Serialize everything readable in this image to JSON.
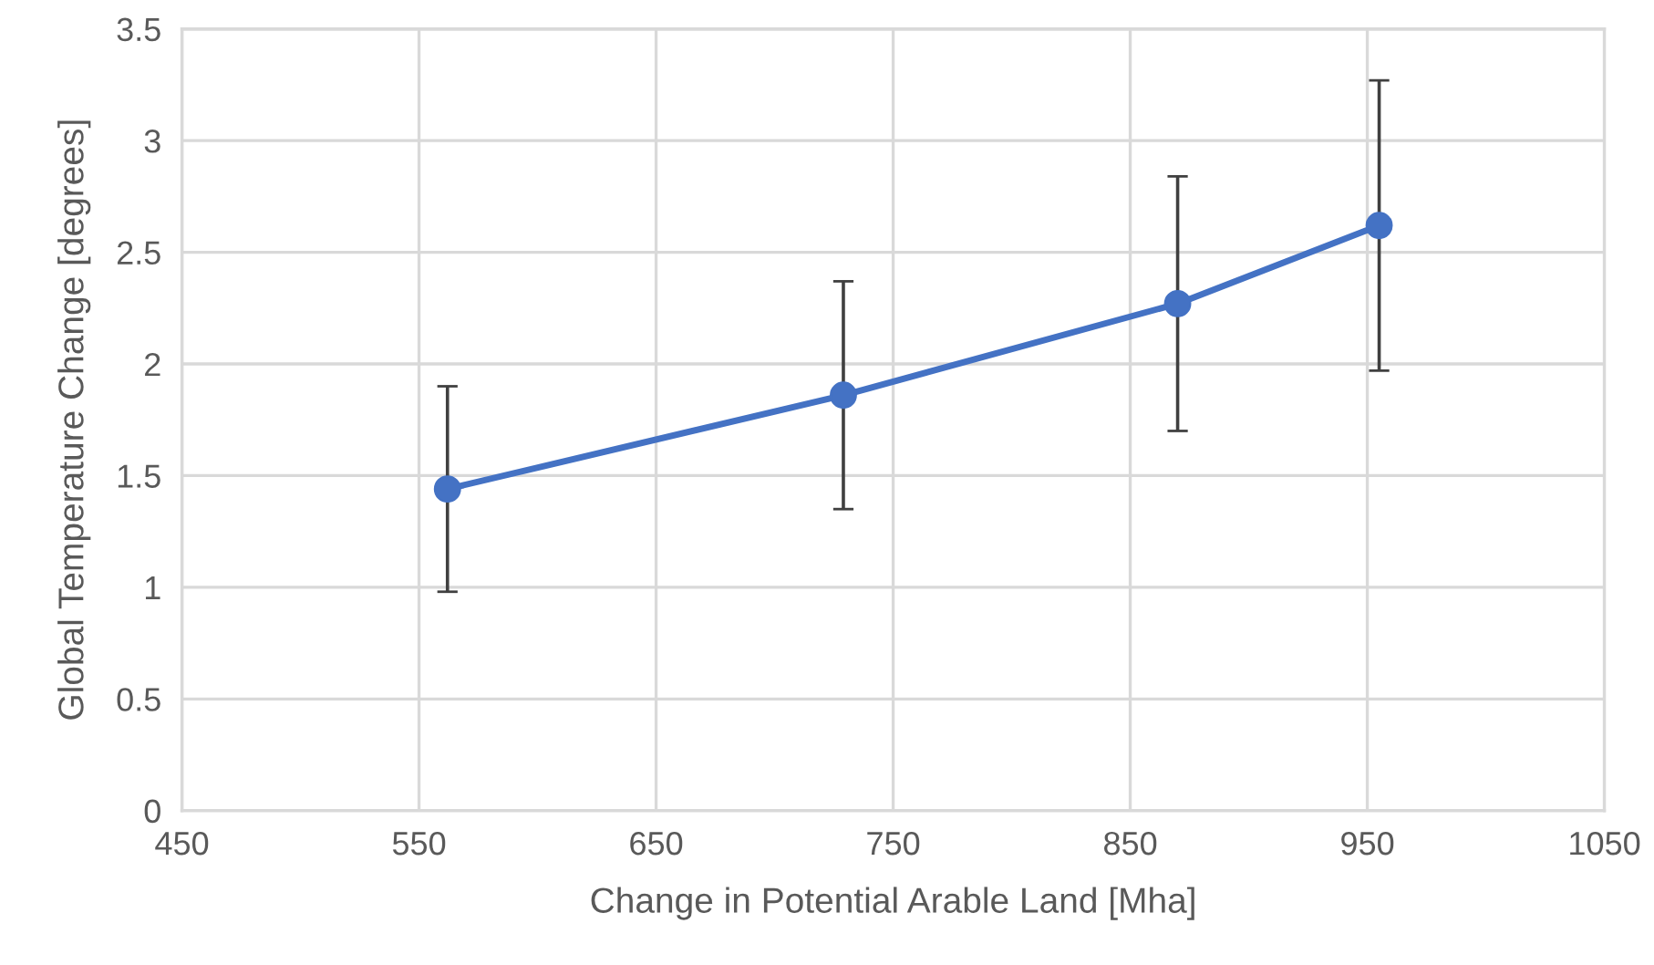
{
  "chart_data": {
    "type": "line",
    "xlabel": "Change in Potential Arable Land [Mha]",
    "ylabel": "Global Temperature Change [degrees]",
    "x": [
      562,
      729,
      870,
      955
    ],
    "series": [
      {
        "color": "#4472c4",
        "values": [
          1.44,
          1.86,
          2.27,
          2.62
        ],
        "errors": [
          [
            0.98,
            1.9
          ],
          [
            1.35,
            2.37
          ],
          [
            1.7,
            2.84
          ],
          [
            1.97,
            3.27
          ]
        ]
      }
    ],
    "xlim": [
      450,
      1050
    ],
    "xticks": [
      450,
      550,
      650,
      750,
      850,
      950,
      1050
    ],
    "ylim": [
      0,
      3.5
    ],
    "yticks": [
      0,
      0.5,
      1,
      1.5,
      2,
      2.5,
      3,
      3.5
    ],
    "grid": true,
    "marker": "circle",
    "line_style": "solid"
  }
}
